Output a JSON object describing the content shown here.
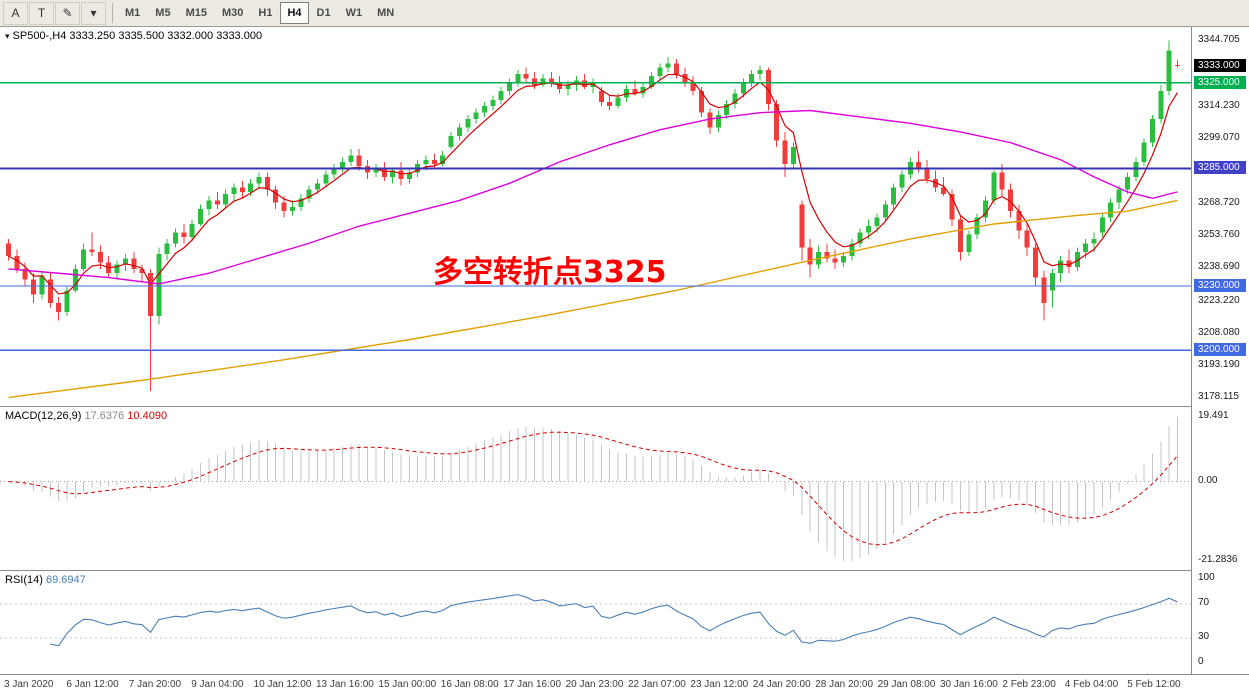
{
  "toolbar": {
    "tools": [
      {
        "name": "font-tool",
        "glyph": "A"
      },
      {
        "name": "text-tool",
        "glyph": "T"
      },
      {
        "name": "draw-tool",
        "glyph": "✎"
      },
      {
        "name": "tool-dropdown",
        "glyph": "▾"
      }
    ],
    "timeframes": [
      "M1",
      "M5",
      "M15",
      "M30",
      "H1",
      "H4",
      "D1",
      "W1",
      "MN"
    ],
    "active_timeframe": "H4"
  },
  "chart_data": {
    "type": "candlestick",
    "symbol": "SP500-",
    "timeframe": "H4",
    "header": "SP500-,H4 3333.250 3335.500 3332.000 3333.000",
    "current_bar": {
      "open": 3333.25,
      "high": 3335.5,
      "low": 3332.0,
      "close": 3333.0
    },
    "annotation": {
      "text": "多空转折点3325",
      "color": "#FF0000"
    },
    "colors": {
      "up": "#2ABD3E",
      "down": "#F23B3B",
      "fast_ma": "#D40000",
      "medium_ma": "#DD00DD",
      "slow_ma": "#E0A000",
      "macd_hist": "#C4C4C4",
      "macd_signal": "#D40000",
      "rsi_line": "#4A7EB5"
    },
    "price_axis": {
      "range": [
        3174,
        3351
      ],
      "ticks": [
        3344.705,
        3314.23,
        3299.07,
        3268.72,
        3253.76,
        3238.69,
        3223.22,
        3208.08,
        3193.19,
        3178.115
      ],
      "tick_labels": [
        "3344.705",
        "3314.230",
        "3299.070",
        "3268.720",
        "3253.760",
        "3238.690",
        "3223.220",
        "3208.080",
        "3193.190",
        "3178.115"
      ],
      "badges": [
        {
          "label": "3333.000",
          "price": 3333,
          "bg": "#000000"
        },
        {
          "label": "3325.000",
          "price": 3325,
          "bg": "#00B050"
        },
        {
          "label": "3285.000",
          "price": 3285,
          "bg": "#4141C8"
        },
        {
          "label": "3230.000",
          "price": 3230,
          "bg": "#4169E1"
        },
        {
          "label": "3200.000",
          "price": 3200,
          "bg": "#4169E1"
        }
      ]
    },
    "hlines": [
      {
        "price": 3325,
        "color": "#00B050",
        "width": 1.3
      },
      {
        "price": 3285,
        "color": "#3434B4",
        "width": 2
      },
      {
        "price": 3230,
        "color": "#4169E1",
        "width": 1.3
      },
      {
        "price": 3200,
        "color": "#4169E1",
        "width": 1.3
      }
    ],
    "x_labels": [
      "3 Jan 2020",
      "6 Jan 12:00",
      "7 Jan 20:00",
      "9 Jan 04:00",
      "10 Jan 12:00",
      "13 Jan 16:00",
      "15 Jan 00:00",
      "16 Jan 08:00",
      "17 Jan 16:00",
      "20 Jan 23:00",
      "22 Jan 07:00",
      "23 Jan 12:00",
      "24 Jan 20:00",
      "28 Jan 20:00",
      "29 Jan 08:00",
      "30 Jan 16:00",
      "2 Feb 23:00",
      "4 Feb 04:00",
      "5 Feb 12:00"
    ],
    "candles": [
      [
        3250,
        3252,
        3242,
        3244
      ],
      [
        3244,
        3247,
        3236,
        3238
      ],
      [
        3238,
        3241,
        3230,
        3233
      ],
      [
        3233,
        3236,
        3222,
        3226
      ],
      [
        3226,
        3237,
        3224,
        3235
      ],
      [
        3233,
        3236,
        3220,
        3222
      ],
      [
        3222,
        3225,
        3214,
        3218
      ],
      [
        3218,
        3230,
        3216,
        3228
      ],
      [
        3228,
        3240,
        3227,
        3238
      ],
      [
        3238,
        3250,
        3237,
        3247
      ],
      [
        3247,
        3255,
        3244,
        3246
      ],
      [
        3246,
        3249,
        3238,
        3241
      ],
      [
        3241,
        3244,
        3234,
        3236
      ],
      [
        3236,
        3242,
        3233,
        3240
      ],
      [
        3240,
        3245,
        3237,
        3243
      ],
      [
        3243,
        3246,
        3236,
        3238
      ],
      [
        3238,
        3240,
        3232,
        3236
      ],
      [
        3236,
        3238,
        3181,
        3216
      ],
      [
        3216,
        3248,
        3212,
        3245
      ],
      [
        3245,
        3252,
        3242,
        3250
      ],
      [
        3250,
        3257,
        3248,
        3255
      ],
      [
        3255,
        3259,
        3250,
        3253
      ],
      [
        3253,
        3261,
        3251,
        3259
      ],
      [
        3259,
        3268,
        3258,
        3266
      ],
      [
        3266,
        3272,
        3263,
        3270
      ],
      [
        3270,
        3274,
        3266,
        3268
      ],
      [
        3268,
        3275,
        3266,
        3273
      ],
      [
        3273,
        3278,
        3270,
        3276
      ],
      [
        3276,
        3279,
        3271,
        3274
      ],
      [
        3274,
        3280,
        3272,
        3278
      ],
      [
        3278,
        3283,
        3275,
        3281
      ],
      [
        3281,
        3283,
        3272,
        3275
      ],
      [
        3275,
        3277,
        3266,
        3269
      ],
      [
        3269,
        3272,
        3262,
        3265
      ],
      [
        3265,
        3270,
        3263,
        3267
      ],
      [
        3267,
        3273,
        3265,
        3271
      ],
      [
        3271,
        3277,
        3269,
        3275
      ],
      [
        3275,
        3280,
        3273,
        3278
      ],
      [
        3278,
        3284,
        3276,
        3282
      ],
      [
        3282,
        3287,
        3280,
        3285
      ],
      [
        3285,
        3290,
        3283,
        3288
      ],
      [
        3288,
        3294,
        3286,
        3291
      ],
      [
        3291,
        3294,
        3284,
        3286
      ],
      [
        3286,
        3289,
        3280,
        3283
      ],
      [
        3283,
        3287,
        3281,
        3285
      ],
      [
        3285,
        3288,
        3279,
        3281
      ],
      [
        3281,
        3285,
        3278,
        3284
      ],
      [
        3284,
        3288,
        3277,
        3280
      ],
      [
        3280,
        3285,
        3278,
        3283
      ],
      [
        3283,
        3289,
        3281,
        3287
      ],
      [
        3287,
        3291,
        3284,
        3289
      ],
      [
        3289,
        3292,
        3285,
        3287
      ],
      [
        3287,
        3293,
        3286,
        3291
      ],
      [
        3295,
        3302,
        3294,
        3300
      ],
      [
        3300,
        3306,
        3298,
        3304
      ],
      [
        3304,
        3310,
        3302,
        3308
      ],
      [
        3308,
        3313,
        3306,
        3311
      ],
      [
        3311,
        3316,
        3309,
        3314
      ],
      [
        3314,
        3319,
        3312,
        3317
      ],
      [
        3317,
        3323,
        3315,
        3321
      ],
      [
        3321,
        3327,
        3319,
        3325
      ],
      [
        3325,
        3331,
        3323,
        3329
      ],
      [
        3329,
        3332,
        3325,
        3327
      ],
      [
        3327,
        3330,
        3322,
        3324
      ],
      [
        3324,
        3329,
        3323,
        3327
      ],
      [
        3327,
        3330,
        3323,
        3325
      ],
      [
        3325,
        3328,
        3320,
        3322
      ],
      [
        3322,
        3326,
        3319,
        3324
      ],
      [
        3324,
        3328,
        3321,
        3326
      ],
      [
        3326,
        3329,
        3322,
        3323
      ],
      [
        3323,
        3327,
        3320,
        3325
      ],
      [
        3321,
        3323,
        3314,
        3316
      ],
      [
        3316,
        3319,
        3312,
        3314
      ],
      [
        3314,
        3320,
        3313,
        3318
      ],
      [
        3318,
        3324,
        3316,
        3322
      ],
      [
        3322,
        3326,
        3319,
        3320
      ],
      [
        3320,
        3325,
        3318,
        3323
      ],
      [
        3323,
        3330,
        3322,
        3328
      ],
      [
        3328,
        3334,
        3326,
        3332
      ],
      [
        3332,
        3337,
        3330,
        3334
      ],
      [
        3334,
        3336,
        3327,
        3329
      ],
      [
        3329,
        3332,
        3323,
        3325
      ],
      [
        3325,
        3328,
        3319,
        3321
      ],
      [
        3321,
        3323,
        3309,
        3311
      ],
      [
        3311,
        3313,
        3301,
        3304
      ],
      [
        3304,
        3312,
        3302,
        3310
      ],
      [
        3310,
        3317,
        3308,
        3315
      ],
      [
        3315,
        3322,
        3313,
        3320
      ],
      [
        3320,
        3327,
        3318,
        3325
      ],
      [
        3325,
        3331,
        3323,
        3329
      ],
      [
        3329,
        3333,
        3326,
        3331
      ],
      [
        3331,
        3332,
        3312,
        3315
      ],
      [
        3315,
        3317,
        3295,
        3298
      ],
      [
        3298,
        3302,
        3281,
        3287
      ],
      [
        3287,
        3297,
        3285,
        3295
      ],
      [
        3268,
        3270,
        3242,
        3248
      ],
      [
        3248,
        3252,
        3234,
        3240
      ],
      [
        3240,
        3249,
        3238,
        3246
      ],
      [
        3246,
        3250,
        3241,
        3243
      ],
      [
        3243,
        3247,
        3238,
        3241
      ],
      [
        3241,
        3246,
        3239,
        3244
      ],
      [
        3244,
        3252,
        3242,
        3250
      ],
      [
        3250,
        3257,
        3248,
        3255
      ],
      [
        3255,
        3261,
        3252,
        3258
      ],
      [
        3258,
        3264,
        3255,
        3262
      ],
      [
        3262,
        3270,
        3260,
        3268
      ],
      [
        3268,
        3278,
        3266,
        3276
      ],
      [
        3276,
        3284,
        3274,
        3282
      ],
      [
        3282,
        3290,
        3280,
        3288
      ],
      [
        3288,
        3293,
        3283,
        3285
      ],
      [
        3285,
        3289,
        3278,
        3280
      ],
      [
        3280,
        3284,
        3274,
        3276
      ],
      [
        3276,
        3281,
        3272,
        3273
      ],
      [
        3273,
        3275,
        3258,
        3261
      ],
      [
        3261,
        3263,
        3242,
        3246
      ],
      [
        3246,
        3256,
        3244,
        3254
      ],
      [
        3254,
        3264,
        3252,
        3262
      ],
      [
        3262,
        3272,
        3260,
        3270
      ],
      [
        3270,
        3284,
        3268,
        3283
      ],
      [
        3283,
        3287,
        3272,
        3275
      ],
      [
        3275,
        3278,
        3262,
        3265
      ],
      [
        3265,
        3268,
        3252,
        3256
      ],
      [
        3256,
        3259,
        3244,
        3248
      ],
      [
        3248,
        3250,
        3230,
        3234
      ],
      [
        3234,
        3237,
        3214,
        3222
      ],
      [
        3228,
        3238,
        3220,
        3236
      ],
      [
        3236,
        3244,
        3232,
        3242
      ],
      [
        3242,
        3247,
        3236,
        3239
      ],
      [
        3239,
        3248,
        3237,
        3246
      ],
      [
        3246,
        3252,
        3243,
        3250
      ],
      [
        3250,
        3255,
        3246,
        3252
      ],
      [
        3255,
        3264,
        3253,
        3262
      ],
      [
        3262,
        3271,
        3260,
        3269
      ],
      [
        3269,
        3277,
        3266,
        3275
      ],
      [
        3275,
        3283,
        3273,
        3281
      ],
      [
        3281,
        3290,
        3279,
        3288
      ],
      [
        3288,
        3299,
        3286,
        3297
      ],
      [
        3297,
        3310,
        3295,
        3308
      ],
      [
        3308,
        3324,
        3306,
        3321
      ],
      [
        3321,
        3344.705,
        3319,
        3340
      ],
      [
        3333.25,
        3335.5,
        3332,
        3333
      ]
    ],
    "overlays": {
      "fast_ma_period": 5,
      "medium_ma_anchors": [
        [
          0,
          3238
        ],
        [
          6,
          3236
        ],
        [
          12,
          3234
        ],
        [
          18,
          3231
        ],
        [
          24,
          3236
        ],
        [
          30,
          3243
        ],
        [
          36,
          3250
        ],
        [
          42,
          3258
        ],
        [
          48,
          3264
        ],
        [
          54,
          3270
        ],
        [
          60,
          3278
        ],
        [
          66,
          3288
        ],
        [
          72,
          3296
        ],
        [
          78,
          3303
        ],
        [
          84,
          3308
        ],
        [
          90,
          3311
        ],
        [
          96,
          3312
        ],
        [
          102,
          3309
        ],
        [
          108,
          3306
        ],
        [
          114,
          3302
        ],
        [
          120,
          3297
        ],
        [
          126,
          3289
        ],
        [
          130,
          3281
        ],
        [
          134,
          3274
        ],
        [
          137,
          3271
        ],
        [
          140,
          3274
        ]
      ],
      "slow_ma_anchors": [
        [
          0,
          3178
        ],
        [
          16,
          3186
        ],
        [
          32,
          3195
        ],
        [
          48,
          3205
        ],
        [
          64,
          3216
        ],
        [
          80,
          3228
        ],
        [
          96,
          3242
        ],
        [
          108,
          3252
        ],
        [
          118,
          3259
        ],
        [
          128,
          3263
        ],
        [
          134,
          3265
        ],
        [
          140,
          3270
        ]
      ]
    },
    "macd": {
      "label": "MACD(12,26,9)",
      "value_main": "17.6376",
      "value_signal": "10.4090",
      "params": [
        12,
        26,
        9
      ],
      "axis": [
        {
          "label": "19.491",
          "role": "max"
        },
        {
          "label": "0.00",
          "role": "zero"
        },
        {
          "label": "-21.2836",
          "role": "min"
        }
      ]
    },
    "rsi": {
      "label": "RSI(14)",
      "value": "69.6947",
      "period": 14,
      "levels": [
        70,
        30
      ],
      "axis": [
        {
          "label": "100",
          "value": 100
        },
        {
          "label": "70",
          "value": 70
        },
        {
          "label": "30",
          "value": 30
        },
        {
          "label": "0",
          "value": 0
        }
      ]
    }
  }
}
